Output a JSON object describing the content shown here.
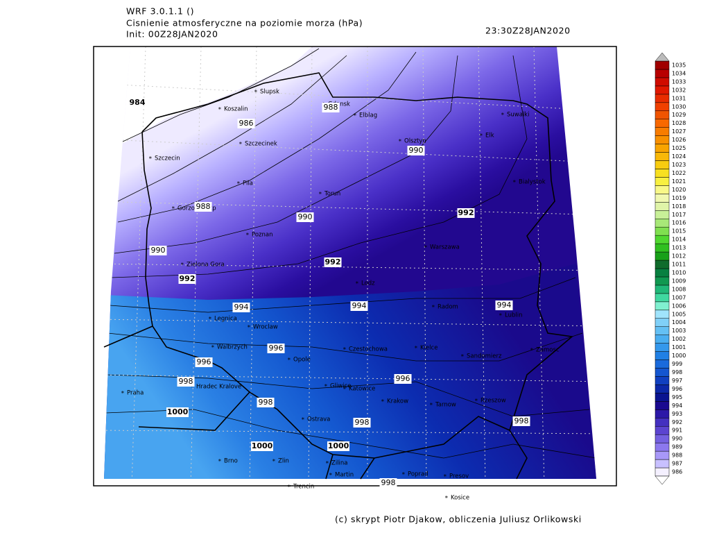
{
  "header": {
    "model": "WRF 3.0.1.1 ()",
    "variable": "Cisnienie atmosferyczne na poziomie morza (hPa)",
    "init": "Init: 00Z28JAN2020",
    "valid": "23:30Z28JAN2020"
  },
  "cities": [
    "Slupsk",
    "Koszalin",
    "Gdansk",
    "Elblag",
    "Suwalki",
    "Elk",
    "Olsztyn",
    "Szczecinek",
    "Szczecin",
    "Pila",
    "Torun",
    "Bialystok",
    "Gorzow Wlkp",
    "Poznan",
    "Warszawa",
    "Zielona Gora",
    "Lodz",
    "Radom",
    "Lublin",
    "Legnica",
    "Wroclaw",
    "Walbrzych",
    "Opole",
    "Czestochowa",
    "Kielce",
    "Sandomierz",
    "Zamosc",
    "Praha",
    "Hradec Kralove",
    "Gliwice",
    "Katowice",
    "Krakow",
    "Tarnow",
    "Rzeszow",
    "Ostrava",
    "Brno",
    "Zlin",
    "Zilina",
    "Martin",
    "Poprad",
    "Presov",
    "Trencin",
    "Kosice"
  ],
  "contour_labels": [
    984,
    986,
    988,
    990,
    988,
    990,
    992,
    990,
    992,
    992,
    994,
    994,
    994,
    996,
    996,
    998,
    996,
    998,
    1000,
    998,
    998,
    1000,
    1000,
    998
  ],
  "colorbar": {
    "levels": [
      986,
      987,
      988,
      989,
      990,
      991,
      992,
      993,
      994,
      995,
      996,
      997,
      998,
      999,
      1000,
      1001,
      1002,
      1003,
      1004,
      1005,
      1006,
      1007,
      1008,
      1009,
      1010,
      1011,
      1012,
      1013,
      1014,
      1015,
      1016,
      1017,
      1018,
      1019,
      1020,
      1021,
      1022,
      1023,
      1024,
      1025,
      1026,
      1027,
      1028,
      1029,
      1030,
      1031,
      1032,
      1033,
      1034,
      1035
    ],
    "colors": [
      "#f4f0ff",
      "#c8c0ff",
      "#a898f8",
      "#8c78ee",
      "#7460e0",
      "#5c44d0",
      "#4430c0",
      "#2c18a8",
      "#1a0a90",
      "#0a1490",
      "#0c28a8",
      "#1040c0",
      "#1456d0",
      "#1a6adc",
      "#2080e4",
      "#3498ec",
      "#4aaef0",
      "#64c0f4",
      "#80d0f8",
      "#a0e4fc",
      "#80f0d0",
      "#40d8a0",
      "#20b878",
      "#109850",
      "#088040",
      "#106c2c",
      "#18a018",
      "#30c020",
      "#50d830",
      "#80e050",
      "#a8e878",
      "#c8f098",
      "#e0f4a8",
      "#f0f8b0",
      "#f8f888",
      "#f8f040",
      "#f8e020",
      "#f8cc10",
      "#f8b808",
      "#f8a400",
      "#f89000",
      "#f87c00",
      "#f86800",
      "#f05400",
      "#f04000",
      "#e82c00",
      "#e01800",
      "#d00c00",
      "#b80000",
      "#a00000"
    ]
  },
  "footer": "(c) skrypt Piotr Djakow, obliczenia Juliusz Orlikowski"
}
